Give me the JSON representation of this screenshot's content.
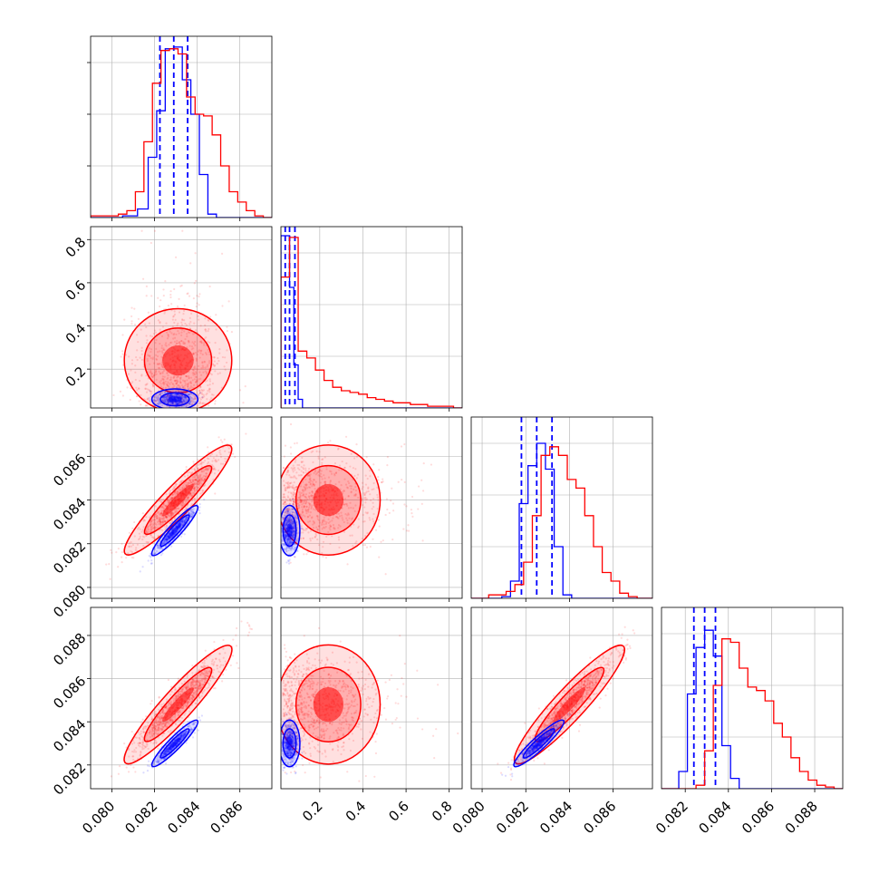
{
  "chart_data": {
    "type": "corner",
    "colors": {
      "blue": "#0000ff",
      "red": "#ff0000",
      "grid": "#b0b0b0"
    },
    "parameters": [
      {
        "range": [
          0.079,
          0.0875
        ],
        "ticks": [
          "0.080",
          "0.082",
          "0.084",
          "0.086"
        ],
        "tick_values": [
          0.08,
          0.082,
          0.084,
          0.086
        ]
      },
      {
        "range": [
          0.02,
          0.86
        ],
        "ticks": [
          "0.2",
          "0.4",
          "0.6",
          "0.8"
        ],
        "tick_values": [
          0.2,
          0.4,
          0.6,
          0.8
        ]
      },
      {
        "range": [
          0.0795,
          0.0878
        ],
        "ticks": [
          "0.080",
          "0.082",
          "0.084",
          "0.086"
        ],
        "tick_values": [
          0.08,
          0.082,
          0.084,
          0.086
        ]
      },
      {
        "range": [
          0.0809,
          0.0893
        ],
        "ticks": [
          "0.082",
          "0.084",
          "0.086",
          "0.088"
        ],
        "tick_values": [
          0.082,
          0.084,
          0.086,
          0.088
        ]
      }
    ],
    "series": [
      {
        "color": "blue",
        "mean": [
          0.08295,
          0.06,
          0.0826,
          0.083
        ],
        "sd": [
          0.00045,
          0.02,
          0.00048,
          0.00045
        ],
        "histograms": [
          {
            "edges": [
              0.079,
              0.0805,
              0.0812,
              0.0817,
              0.0821,
              0.0825,
              0.0829,
              0.0833,
              0.0837,
              0.0841,
              0.0845,
              0.0849,
              0.0853,
              0.0875
            ],
            "values": [
              0.0,
              0.01,
              0.05,
              0.35,
              0.62,
              0.98,
              0.99,
              0.8,
              0.6,
              0.25,
              0.02,
              0.0,
              0.0
            ]
          },
          {
            "edges": [
              0.02,
              0.04,
              0.06,
              0.08,
              0.1,
              0.12,
              0.86
            ],
            "values": [
              1.0,
              1.0,
              0.7,
              0.25,
              0.05,
              0.0
            ]
          },
          {
            "edges": [
              0.0795,
              0.0809,
              0.0813,
              0.0817,
              0.0821,
              0.0825,
              0.0829,
              0.0833,
              0.0837,
              0.0841,
              0.0845,
              0.0878
            ],
            "values": [
              0.0,
              0.01,
              0.1,
              0.55,
              0.77,
              0.9,
              0.75,
              0.3,
              0.02,
              0.0,
              0.0
            ]
          },
          {
            "edges": [
              0.0809,
              0.0817,
              0.0821,
              0.0825,
              0.0829,
              0.0833,
              0.0837,
              0.0841,
              0.0845,
              0.0893
            ],
            "values": [
              0.0,
              0.1,
              0.55,
              0.82,
              0.92,
              0.77,
              0.25,
              0.06,
              0.0
            ]
          }
        ],
        "quantiles": [
          [
            0.08225,
            0.0829,
            0.08355
          ],
          [
            0.04,
            0.06,
            0.085
          ],
          [
            0.0818,
            0.0825,
            0.0832
          ],
          [
            0.0824,
            0.0829,
            0.0834
          ]
        ]
      },
      {
        "color": "red",
        "mean": [
          0.0831,
          0.24,
          0.084,
          0.0848
        ],
        "sd": [
          0.00105,
          0.17,
          0.00105,
          0.00115
        ],
        "histograms": [
          {
            "edges": [
              0.079,
              0.0803,
              0.0807,
              0.0811,
              0.0815,
              0.0819,
              0.0823,
              0.0827,
              0.0831,
              0.0835,
              0.0839,
              0.0843,
              0.0847,
              0.0851,
              0.0855,
              0.0859,
              0.0863,
              0.0867,
              0.0871,
              0.0875
            ],
            "values": [
              0.01,
              0.02,
              0.04,
              0.15,
              0.44,
              0.78,
              0.97,
              0.98,
              0.95,
              0.7,
              0.6,
              0.59,
              0.48,
              0.3,
              0.15,
              0.09,
              0.04,
              0.01,
              0.0
            ]
          },
          {
            "edges": [
              0.02,
              0.06,
              0.1,
              0.14,
              0.18,
              0.22,
              0.26,
              0.3,
              0.34,
              0.38,
              0.42,
              0.46,
              0.5,
              0.54,
              0.58,
              0.62,
              0.66,
              0.7,
              0.74,
              0.78,
              0.82,
              0.86
            ],
            "values": [
              0.76,
              0.99,
              0.33,
              0.29,
              0.22,
              0.16,
              0.12,
              0.1,
              0.09,
              0.08,
              0.06,
              0.05,
              0.04,
              0.03,
              0.03,
              0.02,
              0.02,
              0.01,
              0.01,
              0.01,
              0.0
            ]
          },
          {
            "edges": [
              0.0795,
              0.0803,
              0.0807,
              0.0811,
              0.0815,
              0.0819,
              0.0823,
              0.0827,
              0.0831,
              0.0835,
              0.0839,
              0.0843,
              0.0847,
              0.0851,
              0.0855,
              0.0859,
              0.0863,
              0.0867,
              0.0871,
              0.0875,
              0.0878
            ],
            "values": [
              0.0,
              0.02,
              0.02,
              0.04,
              0.08,
              0.21,
              0.48,
              0.83,
              0.88,
              0.83,
              0.69,
              0.64,
              0.48,
              0.3,
              0.15,
              0.1,
              0.03,
              0.01,
              0.0,
              0.0
            ]
          },
          {
            "edges": [
              0.0809,
              0.0825,
              0.0829,
              0.0833,
              0.0837,
              0.0841,
              0.0845,
              0.0849,
              0.0853,
              0.0857,
              0.0861,
              0.0865,
              0.0869,
              0.0873,
              0.0877,
              0.0881,
              0.0885,
              0.0889,
              0.0893
            ],
            "values": [
              0.0,
              0.02,
              0.22,
              0.6,
              0.87,
              0.85,
              0.7,
              0.59,
              0.57,
              0.51,
              0.38,
              0.3,
              0.18,
              0.1,
              0.05,
              0.02,
              0.01,
              0.0
            ]
          }
        ]
      }
    ]
  }
}
